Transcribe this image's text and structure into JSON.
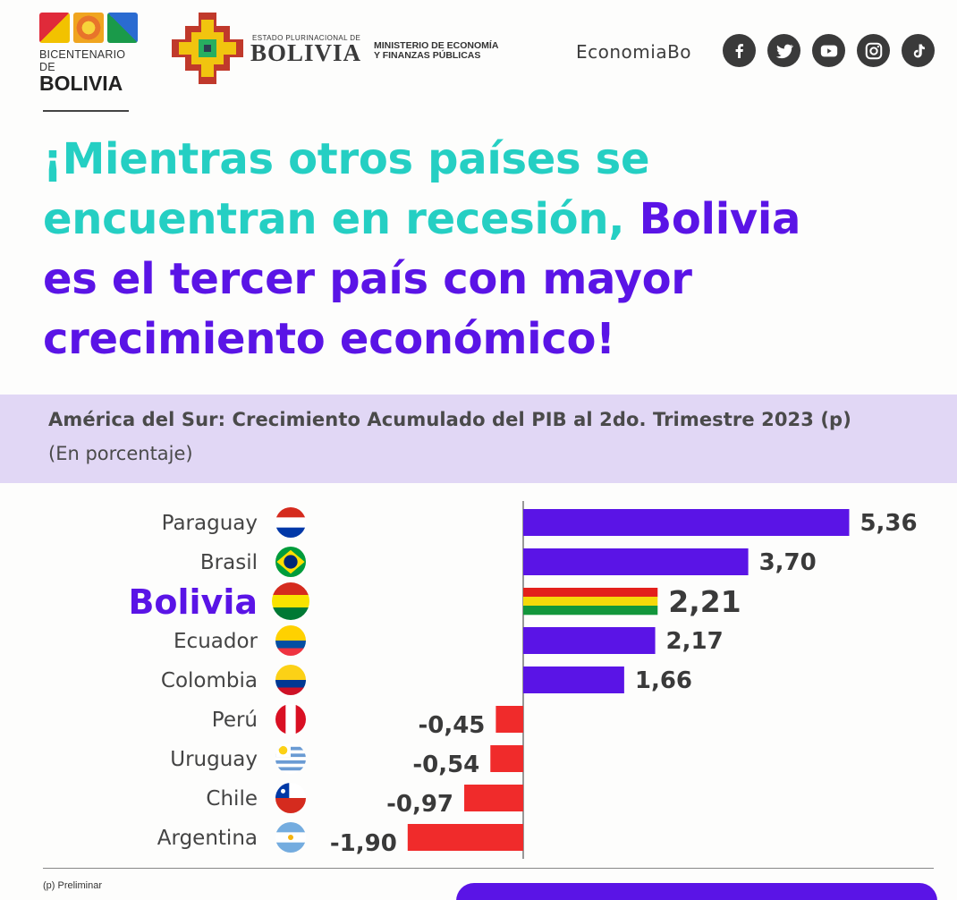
{
  "header": {
    "bicentenario_top": "BICENTENARIO DE",
    "bicentenario_bottom": "BOLIVIA",
    "estado_small": "ESTADO PLURINACIONAL DE",
    "estado_big": "BOLIVIA",
    "ministerio_line1": "MINISTERIO DE ECONOMÍA",
    "ministerio_line2": "Y FINANZAS PÚBLICAS",
    "handle": "EconomiaBo",
    "social_icons": [
      "facebook-icon",
      "twitter-icon",
      "youtube-icon",
      "instagram-icon",
      "tiktok-icon"
    ]
  },
  "headline": {
    "part1": "¡Mientras otros países se",
    "part2": "encuentran en recesión,",
    "part3": "Bolivia",
    "part4": "es el tercer país con mayor",
    "part5": "crecimiento económico!",
    "colors": {
      "teal": "#25cfc3",
      "purple": "#5a14e6"
    }
  },
  "band": {
    "title": "América del Sur: Crecimiento Acumulado del PIB al 2do. Trimestre 2023 (p)",
    "subtitle": "(En porcentaje)",
    "background": "#e1d7f5"
  },
  "chart_data": {
    "type": "bar",
    "orientation": "horizontal",
    "categories": [
      "Paraguay",
      "Brasil",
      "Bolivia",
      "Ecuador",
      "Colombia",
      "Perú",
      "Uruguay",
      "Chile",
      "Argentina"
    ],
    "values": [
      5.36,
      3.7,
      2.21,
      2.17,
      1.66,
      -0.45,
      -0.54,
      -0.97,
      -1.9
    ],
    "value_labels": [
      "5,36",
      "3,70",
      "2,21",
      "2,17",
      "1,66",
      "-0,45",
      "-0,54",
      "-0,97",
      "-1,90"
    ],
    "highlight": "Bolivia",
    "positive_color": "#5a14e6",
    "negative_color": "#f02b2b",
    "highlight_stripes": [
      "#e3201b",
      "#f5d90a",
      "#12963b"
    ],
    "grid": false
  },
  "footer": {
    "footnote": "(p) Preliminar"
  }
}
